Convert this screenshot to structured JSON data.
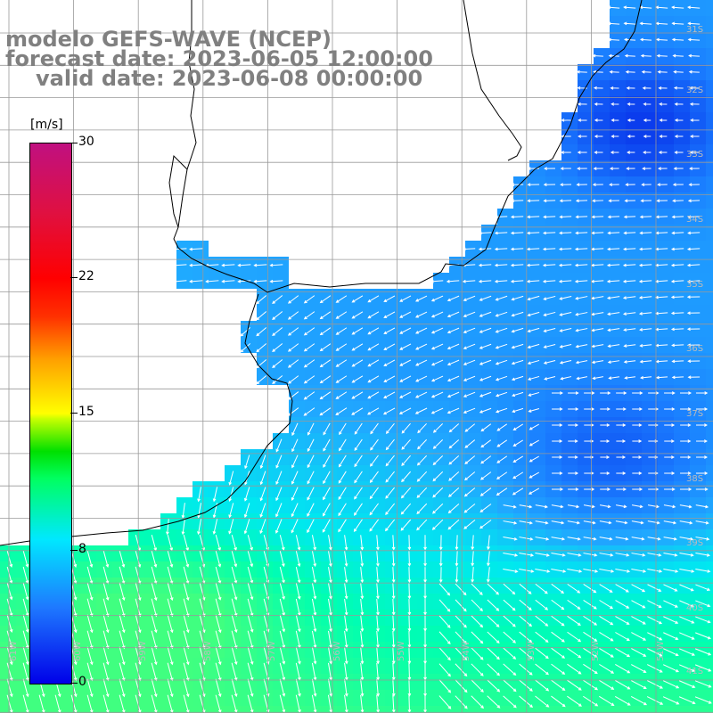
{
  "titles": {
    "model": "modelo GEFS-WAVE (NCEP)",
    "forecast": "forecast date: 2023-06-05 12:00:00",
    "valid": "valid date: 2023-06-08 00:00:00"
  },
  "colorbar": {
    "unit": "[m/s]",
    "ticks": [
      "30",
      "22",
      "15",
      "8",
      "0"
    ],
    "min": 0,
    "max": 30,
    "colors": [
      "#0000e8",
      "#1e78ff",
      "#00e8ff",
      "#00ff60",
      "#00e000",
      "#ffff00",
      "#ffa000",
      "#ff0000",
      "#c01080"
    ]
  },
  "grid": {
    "lon_labels": [
      "61W",
      "60W",
      "59W",
      "58W",
      "57W",
      "56W",
      "55W",
      "54W",
      "53W",
      "52W",
      "51W"
    ],
    "lat_labels": [
      "31S",
      "32S",
      "33S",
      "34S",
      "35S",
      "36S",
      "37S",
      "38S",
      "39S",
      "40S",
      "41S"
    ]
  },
  "colors": {
    "land": "#ffffff",
    "coast": "#000000",
    "grid": "#999999",
    "arrow": "#ffffff",
    "title": "#808080"
  }
}
